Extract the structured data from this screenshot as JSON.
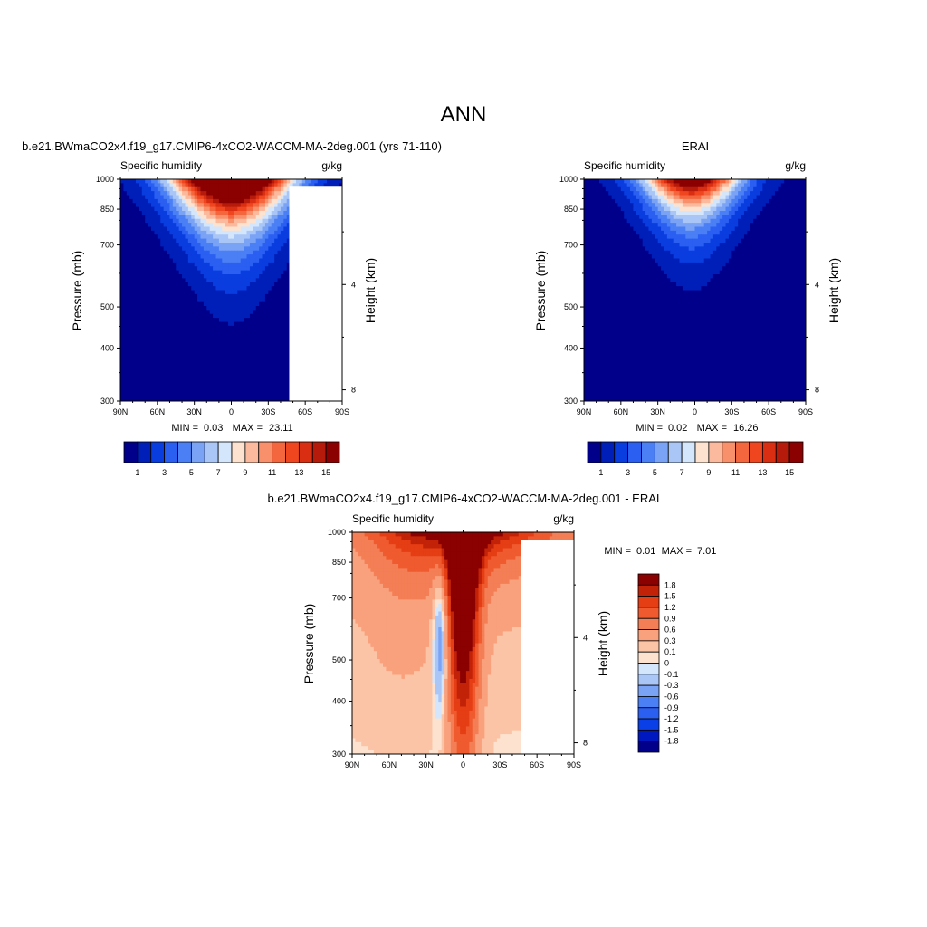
{
  "figure": {
    "main_title": "ANN",
    "colors": {
      "blue_red_16": [
        "#00008b",
        "#001fb8",
        "#0a3de0",
        "#2a5ff2",
        "#4a7ff5",
        "#7aa2f5",
        "#a9c6f7",
        "#d4e6fb",
        "#fde3cf",
        "#fbb99d",
        "#f8906b",
        "#f4673e",
        "#ef4620",
        "#d92e12",
        "#b51a0b",
        "#8b0000"
      ],
      "diff_16": [
        "#00008b",
        "#0018c0",
        "#0a3ee6",
        "#2a5ff2",
        "#4a7ff5",
        "#7aa2f5",
        "#a9c6f7",
        "#d4e6fb",
        "#fde3cf",
        "#fcc4a6",
        "#f9a07c",
        "#f47e55",
        "#ef5a2e",
        "#e53d14",
        "#c12208",
        "#8b0000"
      ]
    }
  },
  "chart_data": [
    {
      "id": "model",
      "type": "contour",
      "title": "b.e21.BWmaCO2x4.f19_g17.CMIP6-4xCO2-WACCM-MA-2deg.001 (yrs 71-110)",
      "left_label": "Specific humidity",
      "right_label": "g/kg",
      "ylabel": "Pressure (mb)",
      "y2label": "Height (km)",
      "x_ticks": [
        "90N",
        "60N",
        "30N",
        "0",
        "30S",
        "60S",
        "90S"
      ],
      "x_range": [
        90,
        -90
      ],
      "y_ticks": [
        300,
        400,
        500,
        700,
        850,
        1000
      ],
      "y_range": [
        1000,
        300
      ],
      "y2_ticks": [
        8,
        4
      ],
      "min_label": "MIN =",
      "min_value": "0.03",
      "max_label": "MAX =",
      "max_value": "23.11",
      "levels": [
        1,
        2,
        3,
        4,
        5,
        6,
        7,
        8,
        9,
        10,
        11,
        12,
        13,
        14,
        15
      ],
      "colorbar_labels": [
        "1",
        "3",
        "5",
        "7",
        "9",
        "11",
        "13",
        "15"
      ],
      "field": {
        "peak_lat": 0,
        "surface_max": 23.1,
        "scale_height_frac": 0.2,
        "lat_width": 33,
        "upper_floor": 0.03
      },
      "missing_lat": -47
    },
    {
      "id": "obs",
      "type": "contour",
      "title": "ERAI",
      "left_label": "Specific humidity",
      "right_label": "g/kg",
      "ylabel": "Pressure (mb)",
      "y2label": "Height (km)",
      "x_ticks": [
        "90N",
        "60N",
        "30N",
        "0",
        "30S",
        "60S",
        "90S"
      ],
      "x_range": [
        90,
        -90
      ],
      "y_ticks": [
        300,
        400,
        500,
        700,
        850,
        1000
      ],
      "y_range": [
        1000,
        300
      ],
      "y2_ticks": [
        8,
        4
      ],
      "min_label": "MIN =",
      "min_value": "0.02",
      "max_label": "MAX =",
      "max_value": "16.26",
      "levels": [
        1,
        2,
        3,
        4,
        5,
        6,
        7,
        8,
        9,
        10,
        11,
        12,
        13,
        14,
        15
      ],
      "colorbar_labels": [
        "1",
        "3",
        "5",
        "7",
        "9",
        "11",
        "13",
        "15"
      ],
      "field": {
        "peak_lat": 3,
        "surface_max": 16.3,
        "scale_height_frac": 0.17,
        "lat_width": 27,
        "upper_floor": 0.02
      },
      "missing_lat": null
    },
    {
      "id": "diff",
      "type": "contour",
      "title": "b.e21.BWmaCO2x4.f19_g17.CMIP6-4xCO2-WACCM-MA-2deg.001 - ERAI",
      "left_label": "Specific humidity",
      "right_label": "g/kg",
      "ylabel": "Pressure (mb)",
      "y2label": "Height (km)",
      "x_ticks": [
        "90N",
        "60N",
        "30N",
        "0",
        "30S",
        "60S",
        "90S"
      ],
      "x_range": [
        90,
        -90
      ],
      "y_ticks": [
        300,
        400,
        500,
        700,
        850,
        1000
      ],
      "y_range": [
        1000,
        300
      ],
      "y2_ticks": [
        8,
        4
      ],
      "min_label": "MIN =",
      "min_value": "0.01",
      "max_label": "MAX =",
      "max_value": "7.01",
      "levels": [
        -1.8,
        -1.5,
        -1.2,
        -0.9,
        -0.6,
        -0.3,
        -0.1,
        0,
        0.1,
        0.3,
        0.6,
        0.9,
        1.2,
        1.5,
        1.8
      ],
      "colorbar_labels": [
        "1.8",
        "1.5",
        "1.2",
        "0.9",
        "0.6",
        "0.3",
        "0.1",
        "0",
        "-0.1",
        "-0.3",
        "-0.6",
        "-0.9",
        "-1.2",
        "-1.5",
        "-1.8"
      ],
      "missing_lat": -47
    }
  ]
}
